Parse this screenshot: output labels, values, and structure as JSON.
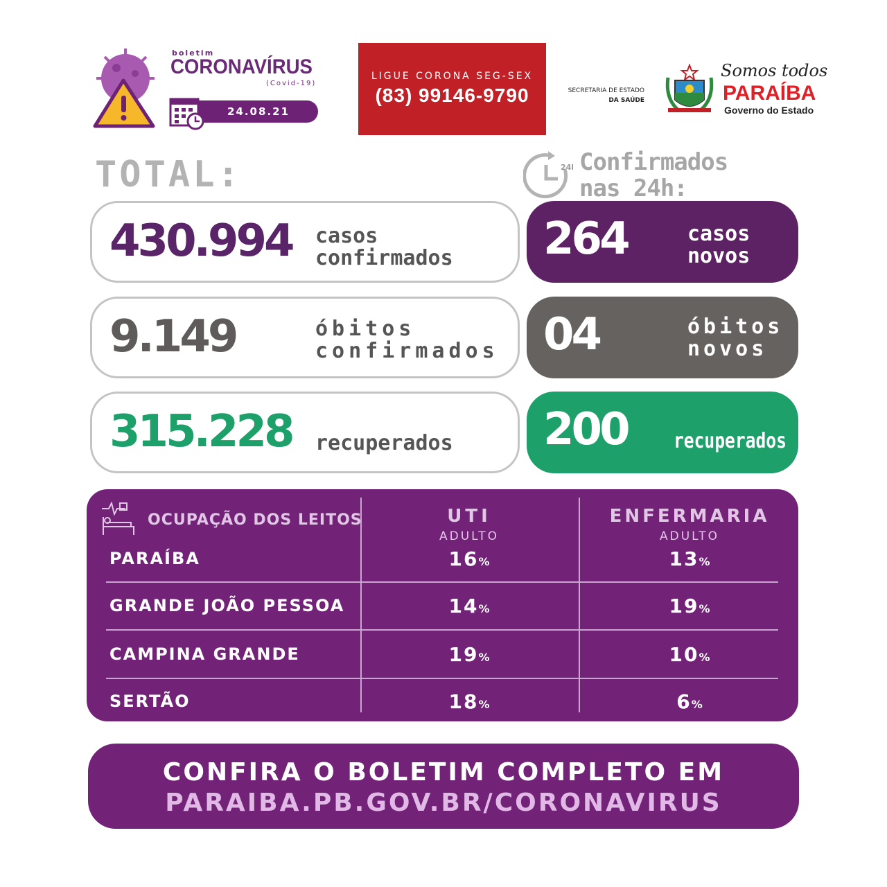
{
  "header": {
    "boletim": "boletim",
    "title": "CORONAVÍRUS",
    "subtitle": "(Covid-19)",
    "date": "24.08.21",
    "hotline_label": "LIGUE CORONA SEG-SEX",
    "hotline_number": "(83) 99146-9790",
    "secretaria_line1": "SECRETARIA DE ESTADO",
    "secretaria_line2": "DA SAÚDE",
    "gov_slogan": "Somos todos",
    "gov_name": "PARAÍBA",
    "gov_sub": "Governo do Estado"
  },
  "totals": {
    "heading": "TOTAL:",
    "cases": {
      "value": "430.994",
      "label1": "casos",
      "label2": "confirmados"
    },
    "deaths": {
      "value": "9.149",
      "label1": "óbitos",
      "label2": "confirmados"
    },
    "recovered": {
      "value": "315.228",
      "label1": "recuperados"
    }
  },
  "last24h": {
    "heading1": "Confirmados",
    "heading2": "nas 24h:",
    "clock_badge": "24h",
    "cases": {
      "value": "264",
      "label1": "casos",
      "label2": "novos"
    },
    "deaths": {
      "value": "04",
      "label1": "óbitos",
      "label2": "novos"
    },
    "recovered": {
      "value": "200",
      "label1": "recuperados"
    }
  },
  "beds": {
    "title": "OCUPAÇÃO DOS LEITOS",
    "col1": "UTI",
    "col1_sub": "ADULTO",
    "col2": "ENFERMARIA",
    "col2_sub": "ADULTO",
    "unit": "%",
    "rows": [
      {
        "region": "PARAÍBA",
        "uti": "16",
        "enf": "13"
      },
      {
        "region": "GRANDE JOÃO PESSOA",
        "uti": "14",
        "enf": "19"
      },
      {
        "region": "CAMPINA GRANDE",
        "uti": "19",
        "enf": "10"
      },
      {
        "region": "SERTÃO",
        "uti": "18",
        "enf": "6"
      }
    ]
  },
  "footer": {
    "line1": "CONFIRA O BOLETIM COMPLETO EM",
    "line2": "PARAIBA.PB.GOV.BR/CORONAVIRUS"
  },
  "colors": {
    "purple": "#722378",
    "dark_purple": "#5c2264",
    "gray": "#666260",
    "green": "#1ea06b",
    "red": "#c12026"
  }
}
